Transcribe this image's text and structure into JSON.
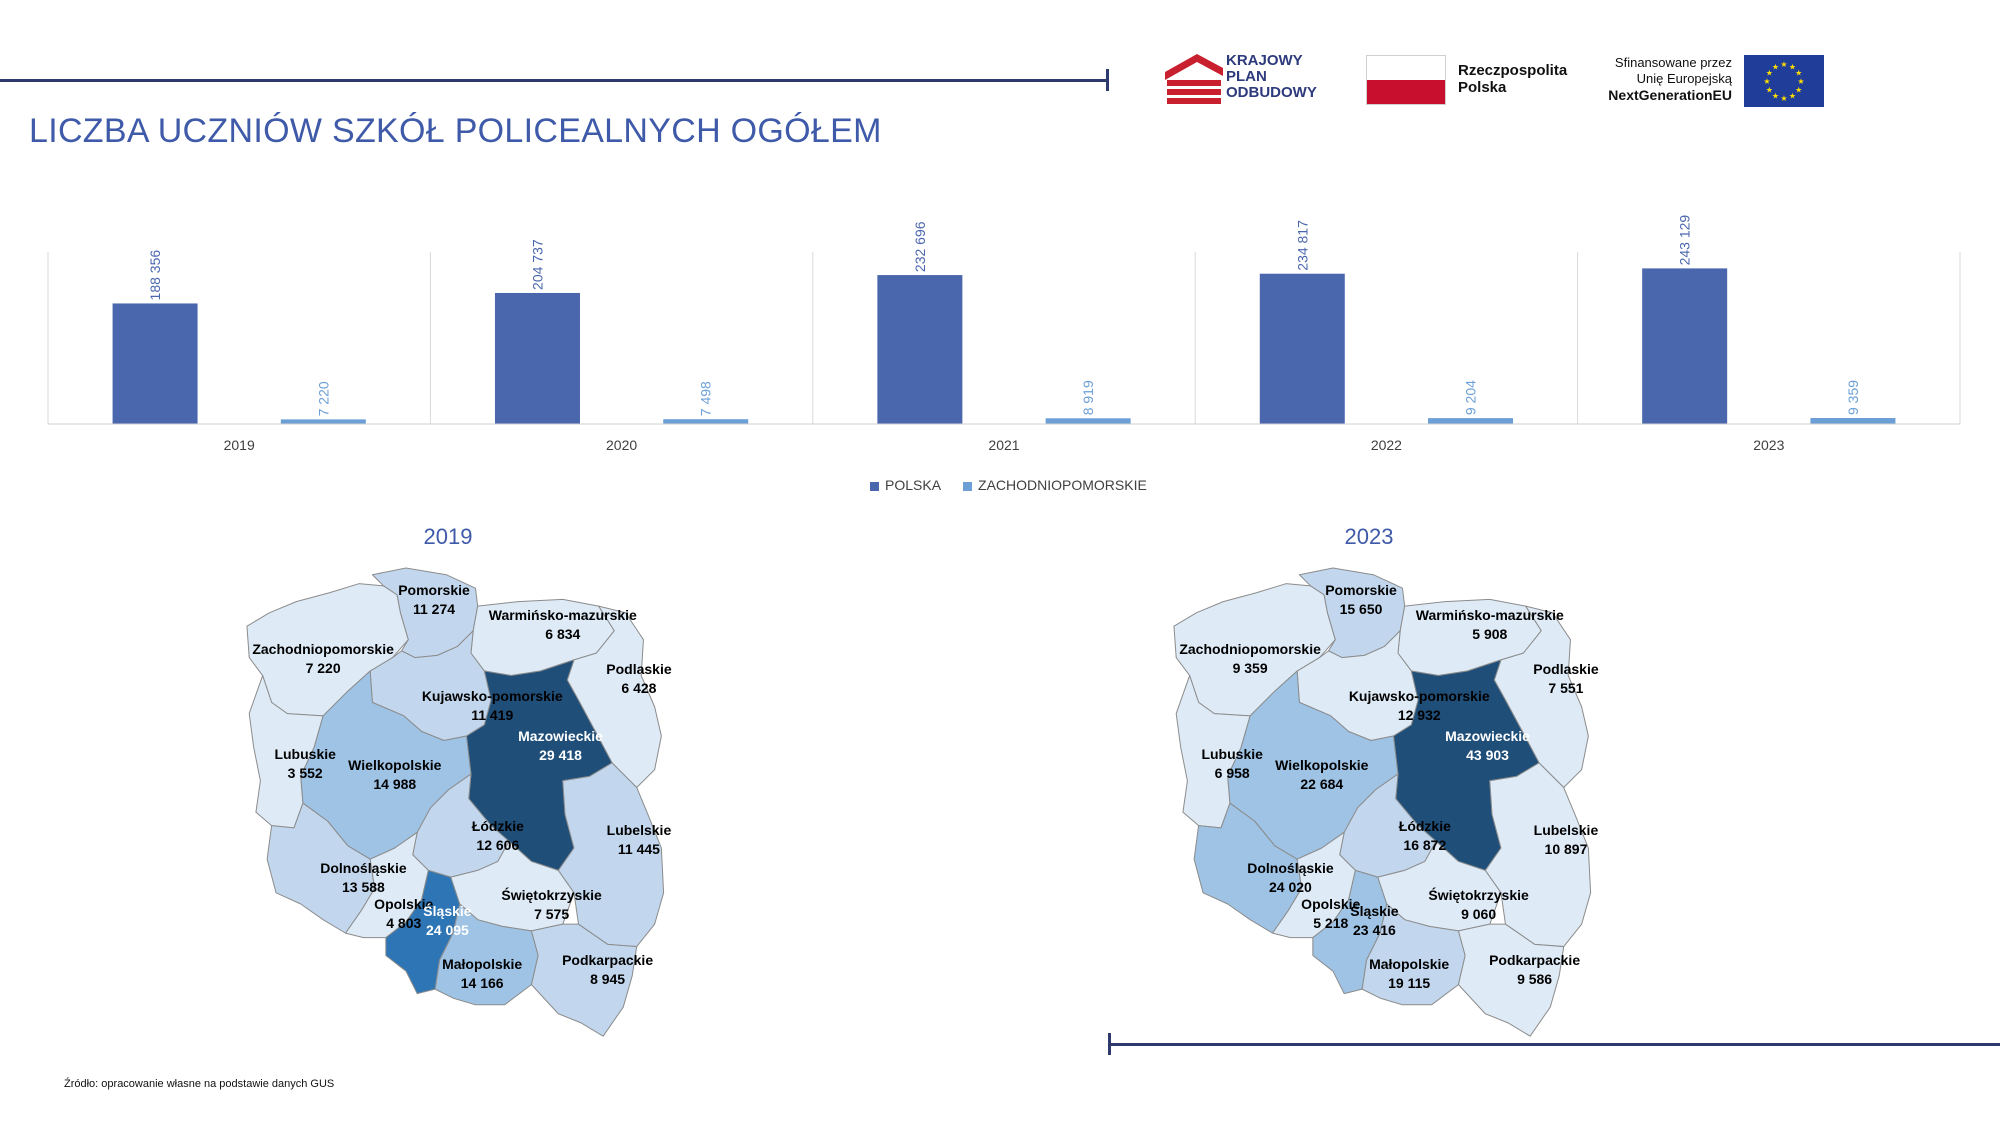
{
  "title": "LICZBA UCZNIÓW SZKÓŁ POLICEALNYCH OGÓŁEM",
  "logos": {
    "kpo_lines": [
      "KRAJOWY",
      "PLAN",
      "ODBUDOWY"
    ],
    "rp_lines": [
      "Rzeczpospolita",
      "Polska"
    ],
    "eu_lines": [
      "Sfinansowane przez",
      "Unię Europejską",
      "NextGenerationEU"
    ]
  },
  "source": "Źródło: opracowanie własne na podstawie danych GUS",
  "colors": {
    "polska": "#4a66ad",
    "zachodniopomorskie": "#6b9fd6",
    "region_scale": [
      "#deebf7",
      "#c2d7ee",
      "#9ec3e5",
      "#2e75b6",
      "#1f4e79"
    ]
  },
  "chart_data": {
    "type": "bar",
    "categories": [
      "2019",
      "2020",
      "2021",
      "2022",
      "2023"
    ],
    "series": [
      {
        "name": "POLSKA",
        "values": [
          188356,
          204737,
          232696,
          234817,
          243129
        ],
        "labels": [
          "188 356",
          "204 737",
          "232 696",
          "234 817",
          "243 129"
        ]
      },
      {
        "name": "ZACHODNIOPOMORSKIE",
        "values": [
          7220,
          7498,
          8919,
          9204,
          9359
        ],
        "labels": [
          "7 220",
          "7 498",
          "8 919",
          "9 204",
          "9 359"
        ]
      }
    ],
    "ylim": [
      0,
      300000
    ],
    "grid": false,
    "legend": "bottom"
  },
  "maps": [
    {
      "year": "2019",
      "regions": [
        {
          "id": "pomorskie",
          "name": "Pomorskie",
          "value": "11 274",
          "level": 1
        },
        {
          "id": "warminsko-mazurskie",
          "name": "Warmińsko-mazurskie",
          "value": "6 834",
          "level": 0
        },
        {
          "id": "zachodniopomorskie",
          "name": "Zachodniopomorskie",
          "value": "7 220",
          "level": 0
        },
        {
          "id": "podlaskie",
          "name": "Podlaskie",
          "value": "6 428",
          "level": 0
        },
        {
          "id": "kujawsko-pomorskie",
          "name": "Kujawsko-pomorskie",
          "value": "11 419",
          "level": 1
        },
        {
          "id": "mazowieckie",
          "name": "Mazowieckie",
          "value": "29 418",
          "level": 4
        },
        {
          "id": "lubuskie",
          "name": "Lubuskie",
          "value": "3 552",
          "level": 0
        },
        {
          "id": "wielkopolskie",
          "name": "Wielkopolskie",
          "value": "14 988",
          "level": 2
        },
        {
          "id": "lodzkie",
          "name": "Łódzkie",
          "value": "12 606",
          "level": 1
        },
        {
          "id": "lubelskie",
          "name": "Lubelskie",
          "value": "11 445",
          "level": 1
        },
        {
          "id": "dolnoslaskie",
          "name": "Dolnośląskie",
          "value": "13 588",
          "level": 1
        },
        {
          "id": "opolskie",
          "name": "Opolskie",
          "value": "4 803",
          "level": 0
        },
        {
          "id": "slaskie",
          "name": "Śląskie",
          "value": "24 095",
          "level": 3
        },
        {
          "id": "swietokrzyskie",
          "name": "Świętokrzyskie",
          "value": "7 575",
          "level": 0
        },
        {
          "id": "malopolskie",
          "name": "Małopolskie",
          "value": "14 166",
          "level": 2
        },
        {
          "id": "podkarpackie",
          "name": "Podkarpackie",
          "value": "8 945",
          "level": 1
        }
      ]
    },
    {
      "year": "2023",
      "regions": [
        {
          "id": "pomorskie",
          "name": "Pomorskie",
          "value": "15 650",
          "level": 1
        },
        {
          "id": "warminsko-mazurskie",
          "name": "Warmińsko-mazurskie",
          "value": "5 908",
          "level": 0
        },
        {
          "id": "zachodniopomorskie",
          "name": "Zachodniopomorskie",
          "value": "9 359",
          "level": 0
        },
        {
          "id": "podlaskie",
          "name": "Podlaskie",
          "value": "7 551",
          "level": 0
        },
        {
          "id": "kujawsko-pomorskie",
          "name": "Kujawsko-pomorskie",
          "value": "12 932",
          "level": 0
        },
        {
          "id": "mazowieckie",
          "name": "Mazowieckie",
          "value": "43 903",
          "level": 4
        },
        {
          "id": "lubuskie",
          "name": "Lubuskie",
          "value": "6 958",
          "level": 0
        },
        {
          "id": "wielkopolskie",
          "name": "Wielkopolskie",
          "value": "22 684",
          "level": 2
        },
        {
          "id": "lodzkie",
          "name": "Łódzkie",
          "value": "16 872",
          "level": 1
        },
        {
          "id": "lubelskie",
          "name": "Lubelskie",
          "value": "10 897",
          "level": 0
        },
        {
          "id": "dolnoslaskie",
          "name": "Dolnośląskie",
          "value": "24 020",
          "level": 2
        },
        {
          "id": "opolskie",
          "name": "Opolskie",
          "value": "5 218",
          "level": 0
        },
        {
          "id": "slaskie",
          "name": "Śląskie",
          "value": "23 416",
          "level": 2
        },
        {
          "id": "swietokrzyskie",
          "name": "Świętokrzyskie",
          "value": "9 060",
          "level": 0
        },
        {
          "id": "malopolskie",
          "name": "Małopolskie",
          "value": "19 115",
          "level": 1
        },
        {
          "id": "podkarpackie",
          "name": "Podkarpackie",
          "value": "9 586",
          "level": 0
        }
      ]
    }
  ]
}
